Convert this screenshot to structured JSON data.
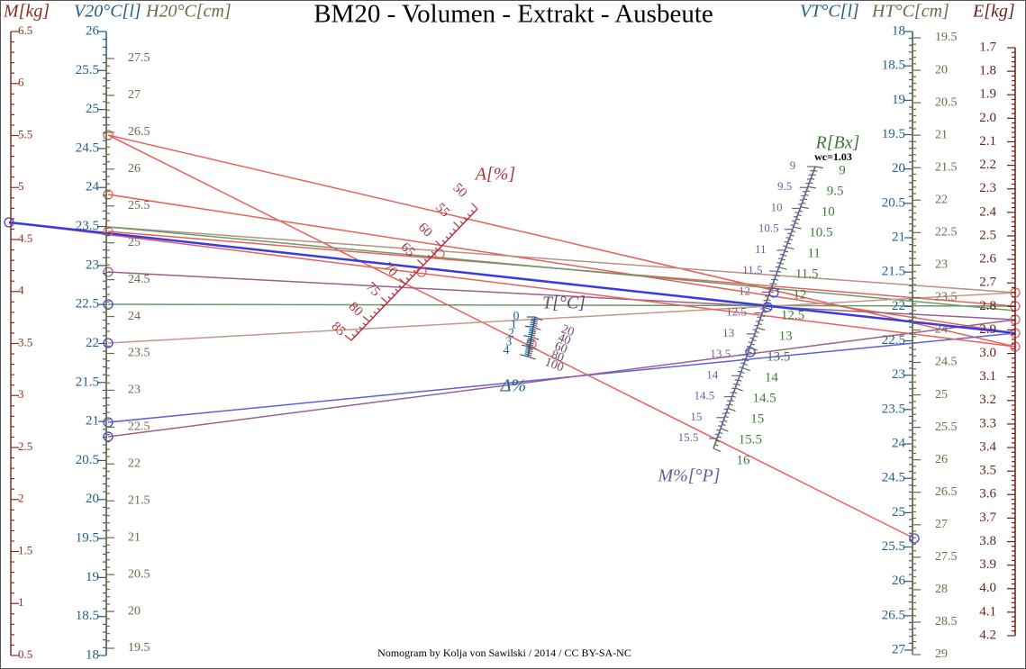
{
  "title": "BM20 - Volumen - Extrakt - Ausbeute",
  "footer": "Nomogram by Kolja von Sawilski / 2014 / CC BY-SA-NC",
  "annotation": "wc=1.03",
  "scales": [
    {
      "name": "M[kg]",
      "ticks": [
        "6.5",
        "6",
        "5.5",
        "5",
        "4.5",
        "4",
        "3.5",
        "3",
        "2.5",
        "2",
        "1.5",
        "1",
        "0.5"
      ]
    },
    {
      "name": "V20°C[l]",
      "ticks": [
        "26",
        "25.5",
        "25",
        "24.5",
        "24",
        "23.5",
        "23",
        "22.5",
        "22",
        "21.5",
        "21",
        "20.5",
        "20",
        "19.5",
        "19",
        "18.5",
        "18"
      ]
    },
    {
      "name": "H20°C[cm]",
      "ticks": [
        "27.5",
        "27",
        "26.5",
        "26",
        "25.5",
        "25",
        "24.5",
        "24",
        "23.5",
        "23",
        "22.5",
        "22",
        "21.5",
        "21",
        "20.5",
        "20",
        "19.5"
      ]
    },
    {
      "name": "VT°C[l]",
      "ticks": [
        "18",
        "18.5",
        "19",
        "19.5",
        "20",
        "20.5",
        "21",
        "21.5",
        "22",
        "22.5",
        "23",
        "23.5",
        "24",
        "24.5",
        "25",
        "25.5",
        "26",
        "26.5",
        "27"
      ]
    },
    {
      "name": "HT°C[cm]",
      "ticks": [
        "19.5",
        "20",
        "20.5",
        "21",
        "21.5",
        "22",
        "22.5",
        "23",
        "23.5",
        "24",
        "24.5",
        "25",
        "25.5",
        "26",
        "26.5",
        "27",
        "27.5",
        "28",
        "28.5",
        "29"
      ]
    },
    {
      "name": "E[kg]",
      "ticks": [
        "1.7",
        "1.8",
        "1.9",
        "2.0",
        "2.1",
        "2.2",
        "2.3",
        "2.4",
        "2.5",
        "2.6",
        "2.7",
        "2.8",
        "2.9",
        "3.0",
        "3.1",
        "3.2",
        "3.3",
        "3.4",
        "3.5",
        "3.6",
        "3.7",
        "3.8",
        "3.9",
        "4.0",
        "4.1",
        "4.2"
      ]
    },
    {
      "name": "A[%]",
      "ticks": [
        "50",
        "55",
        "60",
        "65",
        "70",
        "75",
        "80",
        "85"
      ]
    },
    {
      "name": "R[Bx]",
      "ticks": [
        "9",
        "9.5",
        "10",
        "10.5",
        "11",
        "11.5",
        "12",
        "12.5",
        "13",
        "13.5",
        "14",
        "14.5",
        "15",
        "15.5",
        "16"
      ]
    },
    {
      "name": "M%[°P]",
      "ticks": [
        "9",
        "9.5",
        "10",
        "10.5",
        "11",
        "11.5",
        "12",
        "12.5",
        "13",
        "13.5",
        "14",
        "14.5",
        "15",
        "15.5"
      ]
    },
    {
      "name": "T[°C]",
      "ticks": [
        "20",
        "40",
        "60",
        "80",
        "100"
      ]
    },
    {
      "name": "Δ%",
      "ticks": [
        "0",
        "1",
        "2",
        "3",
        "4"
      ]
    }
  ]
}
